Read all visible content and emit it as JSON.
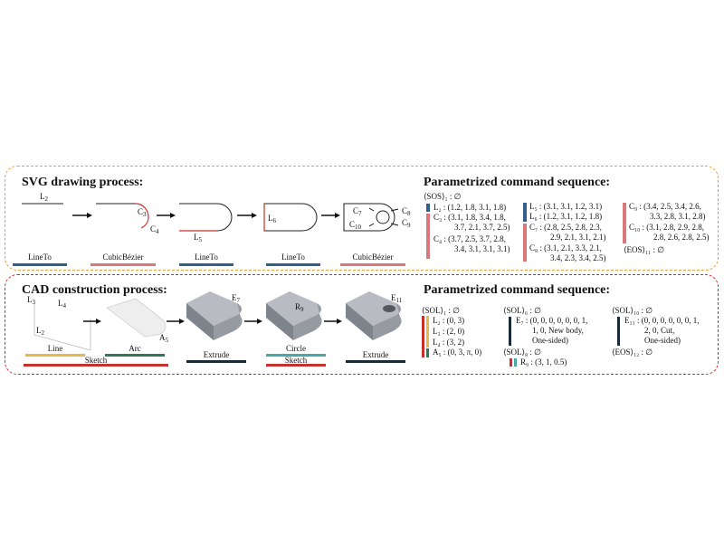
{
  "svg_panel": {
    "title": "SVG drawing process:",
    "seq_title": "Parametrized command sequence:",
    "step_labels": [
      "LineTo",
      "CubicBézier",
      "LineTo",
      "LineTo",
      "CubicBézier"
    ],
    "math": {
      "l2": "L",
      "l2s": "2",
      "c3": "C",
      "c3s": "3",
      "c4": "C",
      "c4s": "4",
      "l5": "L",
      "l5s": "5",
      "l6": "L",
      "l6s": "6",
      "c7": "C",
      "c7s": "7",
      "c10": "C",
      "c10s": "10",
      "c8": "C",
      "c8s": "8",
      "c9": "C",
      "c9s": "9"
    },
    "commands": [
      "⟨SOS⟩₁ : ∅",
      "L₂ : (1.2, 1.8, 3.1, 1.8)",
      "C₃ : (3.1, 1.8, 3.4, 1.8,",
      "3.7, 2.1, 3.7, 2.5)",
      "C₄ : (3.7, 2.5, 3.7, 2.8,",
      "3.4, 3.1, 3.1, 3.1)",
      "L₅ : (3.1, 3.1, 1.2, 3.1)",
      "L₆ : (1.2, 3.1, 1.2, 1.8)",
      "C₇ : (2.8, 2.5, 2.8, 2.3,",
      "2.9, 2.1, 3.1, 2.1)",
      "C₈ : (3.1, 2.1, 3.3, 2.1,",
      "3.4, 2.3, 3.4, 2.5)",
      "C₉ : (3.4, 2.5, 3.4, 2.6,",
      "3.3, 2.8, 3.1, 2.8)",
      "C₁₀ : (3.1, 2.8, 2.9, 2.8,",
      "2.8, 2.6, 2.8, 2.5)",
      "⟨EOS⟩₁₁ : ∅"
    ],
    "colors": {
      "line": "#2f5f8a",
      "curve": "#d9777a",
      "dashed": "#e8a23a"
    }
  },
  "cad_panel": {
    "title": "CAD construction process:",
    "seq_title": "Parametrized command sequence:",
    "step_labels": [
      "Line",
      "Arc",
      "Extrude",
      "Circle",
      "Extrude"
    ],
    "sketch_labels": [
      "Sketch",
      "Sketch"
    ],
    "math": {
      "l3": "L",
      "l3s": "3",
      "l4": "L",
      "l4s": "4",
      "l2": "L",
      "l2s": "2",
      "a5": "A",
      "a5s": "5",
      "e7": "E",
      "e7s": "7",
      "r9": "R",
      "r9s": "9",
      "e11": "E",
      "e11s": "11"
    },
    "commands": [
      "⟨SOL⟩₁ : ∅",
      "L₂ : (0, 3)",
      "L₃ : (2, 0)",
      "L₄ : (3, 2)",
      "A₅ : (0, 3, π, 0)",
      "⟨SOL⟩₆ : ∅",
      "E₇ : (0, 0, 0, 0, 0, 0, 1,",
      "1, 0, New body,",
      "One-sided)",
      "⟨SOL⟩₈ : ∅",
      "R₉ : (3, 1, 0.5)",
      "⟨SOL⟩₁₀ : ∅",
      "E₁₁ : (0, 0, 0, 0, 0, 0, 1,",
      "2, 0, Cut,",
      "One-sided)",
      "⟨EOS⟩₁₂ : ∅"
    ],
    "colors": {
      "line": "#e8b84a",
      "arc": "#2f7a55",
      "extrude": "#1b2a3a",
      "circle": "#4aa6a8",
      "sketch": "#c9302c"
    }
  }
}
